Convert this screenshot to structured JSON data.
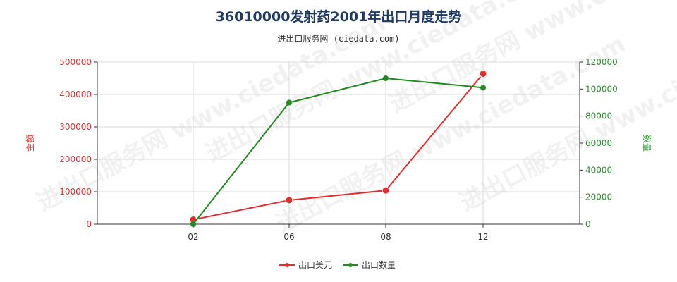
{
  "chart_data": {
    "type": "line",
    "title": "36010000发射药2001年出口月度走势",
    "subtitle": "进出口服务网 (ciedata.com)",
    "categories": [
      "02",
      "06",
      "08",
      "12"
    ],
    "y_left": {
      "label": "金额",
      "range": [
        0,
        500000
      ],
      "ticks": [
        0,
        100000,
        200000,
        300000,
        400000,
        500000
      ]
    },
    "y_right": {
      "label": "数量",
      "range": [
        0,
        120000
      ],
      "ticks": [
        0,
        20000,
        40000,
        60000,
        80000,
        100000,
        120000
      ]
    },
    "series": [
      {
        "name": "出口美元",
        "axis": "left",
        "color": "#e52b2b",
        "values": [
          14000,
          74000,
          104000,
          464000
        ]
      },
      {
        "name": "出口数量",
        "axis": "right",
        "color": "#1e8c1e",
        "values": [
          0,
          90000,
          108000,
          101000
        ]
      }
    ],
    "grid": {
      "x": true,
      "y": true
    },
    "legend": "bottom-center"
  },
  "watermark_text": "进出口服务网 www.ciedata.com"
}
